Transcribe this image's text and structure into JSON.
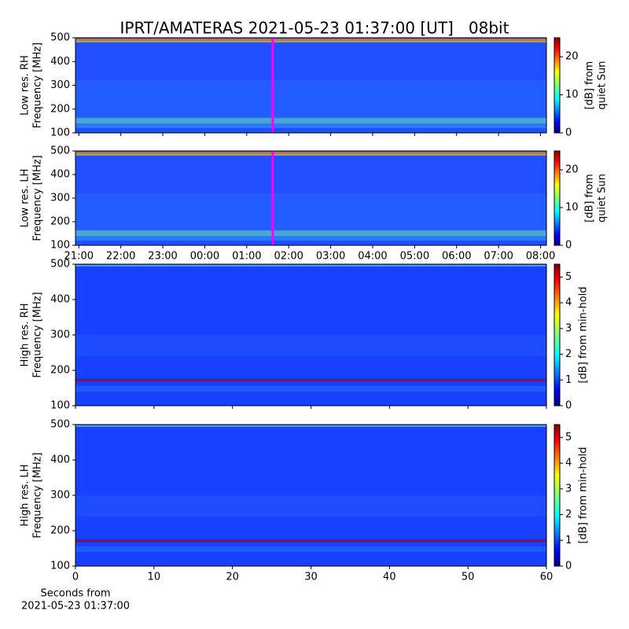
{
  "title": "IPRT/AMATERAS 2021-05-23 01:37:00 [UT]   08bit",
  "chart_data": [
    {
      "type": "heatmap",
      "ylabel": [
        "Low res. RH",
        "Frequency [MHz]"
      ],
      "ylim": [
        100,
        500
      ],
      "yticks": [
        100,
        200,
        300,
        400,
        500
      ],
      "xlim": [
        20.92,
        32.14
      ],
      "xticks": [
        21,
        22,
        23,
        24,
        25,
        26,
        27,
        28,
        29,
        30,
        31,
        32
      ],
      "xticklabels": false,
      "marker_x": 25.62,
      "marker_color": "#ff00ff",
      "colorbar_label": [
        "[dB] from",
        "quiet Sun"
      ],
      "clim": [
        0,
        25
      ],
      "cticks": [
        0,
        10,
        20
      ]
    },
    {
      "type": "heatmap",
      "ylabel": [
        "Low res. LH",
        "Frequency [MHz]"
      ],
      "ylim": [
        100,
        500
      ],
      "yticks": [
        100,
        200,
        300,
        400,
        500
      ],
      "xlim": [
        20.92,
        32.14
      ],
      "xticks": [
        {
          "value": 21,
          "label": "21:00"
        },
        {
          "value": 22,
          "label": "22:00"
        },
        {
          "value": 23,
          "label": "23:00"
        },
        {
          "value": 24,
          "label": "00:00"
        },
        {
          "value": 25,
          "label": "01:00"
        },
        {
          "value": 26,
          "label": "02:00"
        },
        {
          "value": 27,
          "label": "03:00"
        },
        {
          "value": 28,
          "label": "04:00"
        },
        {
          "value": 29,
          "label": "05:00"
        },
        {
          "value": 30,
          "label": "06:00"
        },
        {
          "value": 31,
          "label": "07:00"
        },
        {
          "value": 32,
          "label": "08:00"
        }
      ],
      "xticklabels": true,
      "marker_x": 25.62,
      "marker_color": "#ff00ff",
      "colorbar_label": [
        "[dB] from",
        "quiet Sun"
      ],
      "clim": [
        0,
        25
      ],
      "cticks": [
        0,
        10,
        20
      ]
    },
    {
      "type": "heatmap",
      "ylabel": [
        "High res. RH",
        "Frequency [MHz]"
      ],
      "ylim": [
        100,
        500
      ],
      "yticks": [
        100,
        200,
        300,
        400,
        500
      ],
      "xlim": [
        0,
        60
      ],
      "xticks": [
        0,
        10,
        20,
        30,
        40,
        50,
        60
      ],
      "xticklabels": false,
      "colorbar_label": [
        "[dB] from min-hold"
      ],
      "clim": [
        0,
        5.5
      ],
      "cticks": [
        0,
        1,
        2,
        3,
        4,
        5
      ]
    },
    {
      "type": "heatmap",
      "ylabel": [
        "High res. LH",
        "Frequency [MHz]"
      ],
      "ylim": [
        100,
        500
      ],
      "yticks": [
        100,
        200,
        300,
        400,
        500
      ],
      "xlim": [
        0,
        60
      ],
      "xticks": [
        0,
        10,
        20,
        30,
        40,
        50,
        60
      ],
      "xticklabels": true,
      "xlabel": [
        "Seconds from",
        "2021-05-23 01:37:00"
      ],
      "colorbar_label": [
        "[dB] from min-hold"
      ],
      "clim": [
        0,
        5.5
      ],
      "cticks": [
        0,
        1,
        2,
        3,
        4,
        5
      ]
    }
  ]
}
